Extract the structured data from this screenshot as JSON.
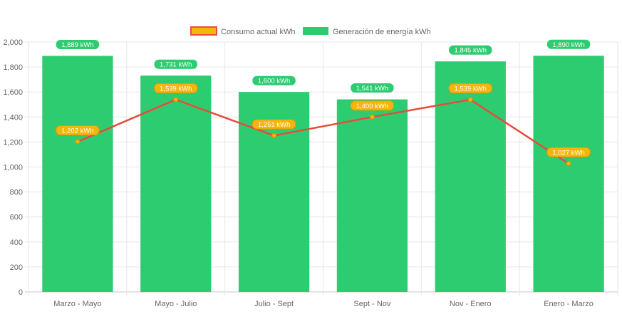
{
  "chart_data": {
    "type": "bar",
    "categories": [
      "Marzo - Mayo",
      "Mayo - Julio",
      "Julio - Sept",
      "Sept - Nov",
      "Nov - Enero",
      "Enero - Marzo"
    ],
    "series": [
      {
        "name": "Generación de energía kWh",
        "type": "bar",
        "color": "#2ecc71",
        "values": [
          1889,
          1731,
          1600,
          1541,
          1845,
          1890
        ],
        "labels": [
          "1,889 kWh",
          "1,731 kWh",
          "1,600 kWh",
          "1,541 kWh",
          "1,845 kWh",
          "1,890 kWh"
        ]
      },
      {
        "name": "Consumo actual kWh",
        "type": "line",
        "color": "#e74c3c",
        "marker_color": "#f5b50a",
        "values": [
          1202,
          1539,
          1251,
          1400,
          1539,
          1027
        ],
        "labels": [
          "1,202 kWh",
          "1,539 kWh",
          "1,251 kWh",
          "1,400 kWh",
          "1,539 kWh",
          "1,027 kWh"
        ]
      }
    ],
    "y_ticks": [
      "0",
      "200",
      "400",
      "600",
      "800",
      "1,000",
      "1,200",
      "1,400",
      "1,600",
      "1,800",
      "2,000"
    ],
    "ylim": [
      0,
      2000
    ],
    "grid": true,
    "legend": "top-center"
  }
}
